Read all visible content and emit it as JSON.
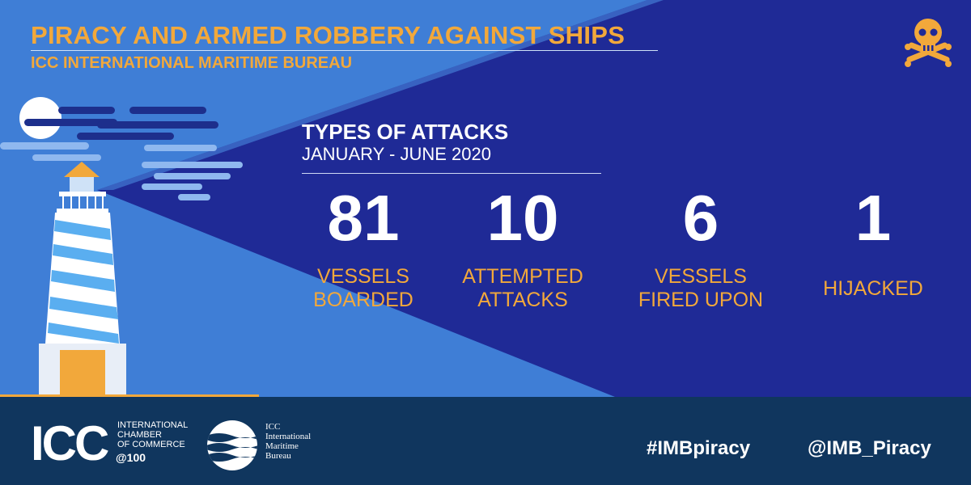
{
  "header": {
    "title": "PIRACY AND ARMED ROBBERY AGAINST SHIPS",
    "subtitle": "ICC INTERNATIONAL MARITIME BUREAU",
    "skull_icon": "skull-crossbones-icon"
  },
  "section": {
    "title": "TYPES OF ATTACKS",
    "period": "JANUARY - JUNE 2020"
  },
  "stats": [
    {
      "value": "81",
      "label": "VESSELS\nBOARDED"
    },
    {
      "value": "10",
      "label": "ATTEMPTED\nATTACKS"
    },
    {
      "value": "6",
      "label": "VESSELS\nFIRED UPON"
    },
    {
      "value": "1",
      "label": "HIJACKED"
    }
  ],
  "footer": {
    "icc_logo": "ICC",
    "icc_name": "INTERNATIONAL\nCHAMBER\nOF COMMERCE",
    "icc_anniversary": "@100",
    "imb_name": "ICC\nInternational\nMaritime\nBureau",
    "hashtag": "#IMBpiracy",
    "handle": "@IMB_Piracy"
  },
  "colors": {
    "background_dark": "#1f2a96",
    "light_beam": "#3f7ed6",
    "accent_orange": "#f2a83b",
    "footer": "#10365e",
    "text": "#ffffff"
  }
}
